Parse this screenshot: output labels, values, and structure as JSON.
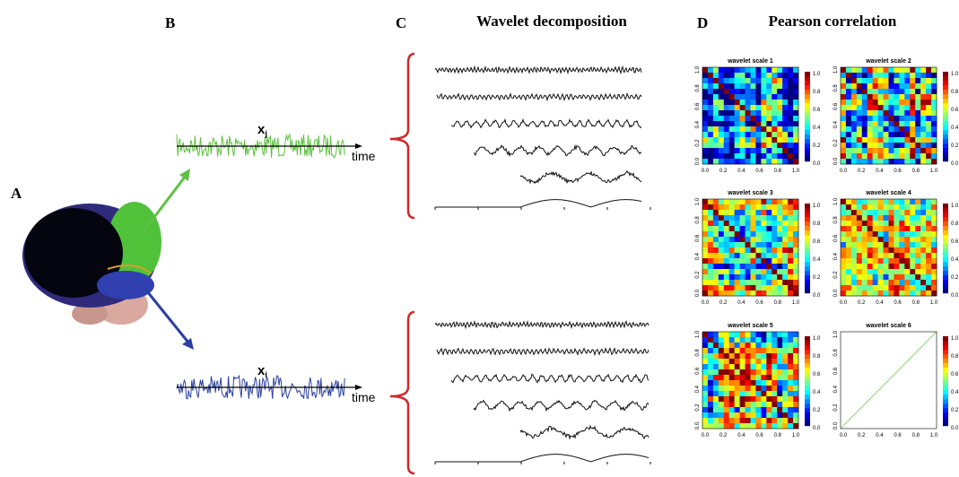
{
  "panel_labels": [
    "A",
    "B",
    "C",
    "D"
  ],
  "panel_b": {
    "signals": [
      {
        "name": "x",
        "subscript": "j",
        "axis_label": "time"
      },
      {
        "name": "x",
        "subscript": "i",
        "axis_label": "time"
      }
    ]
  },
  "panel_c": {
    "title": "Wavelet decomposition"
  },
  "panel_d": {
    "title": "Pearson correlation",
    "heatmaps": [
      {
        "title": "wavelet scale 1"
      },
      {
        "title": "wavelet scale 2"
      },
      {
        "title": "wavelet scale 3"
      },
      {
        "title": "wavelet scale 4"
      },
      {
        "title": "wavelet scale 5"
      },
      {
        "title": "wavelet scale 6"
      }
    ],
    "axis_ticks": [
      "0.0",
      "0.2",
      "0.4",
      "0.6",
      "0.8",
      "1.0"
    ],
    "colorbar_ticks": [
      "0.0",
      "0.2",
      "0.4",
      "0.6",
      "0.8",
      "1.0"
    ]
  }
}
